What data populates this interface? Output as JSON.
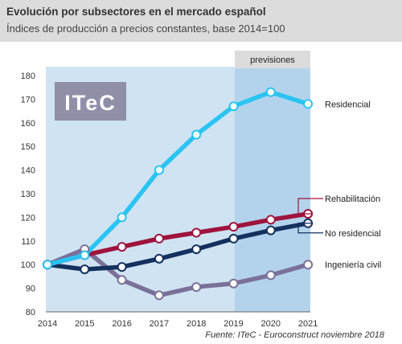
{
  "title": "Evolución por subsectores en el mercado español",
  "subtitle": "Índices de producción a precios constantes, base 2014=100",
  "logo_text": "ITeC",
  "forecast_label": "previsiones",
  "source": "Fuente: ITeC - Euroconstruct noviembre 2018",
  "colors": {
    "title_band": "#dcdcdc",
    "plot_bg": "#cfe3f2",
    "forecast_bg": "#b3d3ec",
    "logo_bg": "#8f8fa8"
  },
  "chart_data": {
    "type": "line",
    "x": [
      "2014",
      "2015",
      "2016",
      "2017",
      "2018",
      "2019",
      "2020",
      "2021"
    ],
    "ylim": [
      80,
      180
    ],
    "yticks": [
      80,
      90,
      100,
      110,
      120,
      130,
      140,
      150,
      160,
      170,
      180
    ],
    "forecast_range": [
      "2019",
      "2021"
    ],
    "grid": false,
    "series": [
      {
        "name": "Residencial",
        "color": "#29c4f2",
        "values": [
          100,
          104,
          120,
          140,
          155,
          167,
          173,
          168
        ]
      },
      {
        "name": "Rehabilitación",
        "color": "#a0133d",
        "values": [
          100,
          104,
          107.5,
          111,
          113.5,
          116,
          119,
          121.5
        ]
      },
      {
        "name": "No residencial",
        "color": "#13305e",
        "values": [
          100,
          98,
          99,
          102.5,
          106.5,
          111,
          114.5,
          117.5
        ]
      },
      {
        "name": "Ingeniería civil",
        "color": "#7a7099",
        "values": [
          100,
          106.5,
          93.5,
          87,
          90.5,
          92,
          95.5,
          100
        ]
      }
    ]
  }
}
